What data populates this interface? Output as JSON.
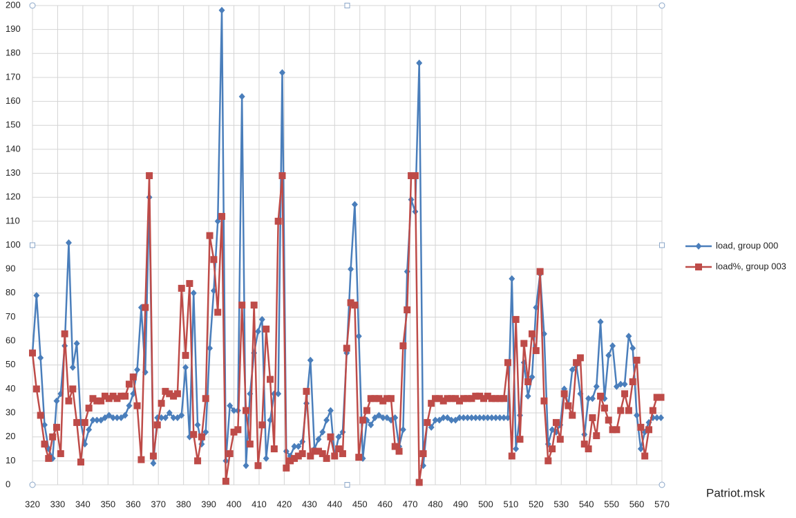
{
  "chart_data": {
    "type": "line",
    "x": [
      320,
      321.6,
      323.2,
      324.8,
      326.4,
      328,
      329.6,
      331.2,
      332.8,
      334.4,
      336,
      337.6,
      339.2,
      340.8,
      342.4,
      344,
      345.6,
      347.2,
      348.8,
      350.4,
      352,
      353.6,
      355.2,
      356.8,
      358.4,
      360,
      361.6,
      363.2,
      364.8,
      366.4,
      368,
      369.6,
      371.2,
      372.8,
      374.4,
      376,
      377.6,
      379.2,
      380.8,
      382.4,
      384,
      385.6,
      387.2,
      388.8,
      390.4,
      392,
      393.6,
      395.2,
      396.8,
      398.4,
      400,
      401.6,
      403.2,
      404.8,
      406.4,
      408,
      409.6,
      411.2,
      412.8,
      414.4,
      416,
      417.6,
      419.2,
      420.8,
      422.4,
      424,
      425.6,
      427.2,
      428.8,
      430.4,
      432,
      433.6,
      435.2,
      436.8,
      438.4,
      440,
      441.6,
      443.2,
      444.8,
      446.4,
      448,
      449.6,
      451.2,
      452.8,
      454.4,
      456,
      457.6,
      459.2,
      460.8,
      462.4,
      464,
      465.6,
      467.2,
      468.8,
      470.4,
      472,
      473.6,
      475.2,
      476.8,
      478.4,
      480,
      481.6,
      483.2,
      484.8,
      486.4,
      488,
      489.6,
      491.2,
      492.8,
      494.4,
      496,
      497.6,
      499.2,
      500.8,
      502.4,
      504,
      505.6,
      507.2,
      508.8,
      510.4,
      512,
      513.6,
      515.2,
      516.8,
      518.4,
      520,
      521.6,
      523.2,
      524.8,
      526.4,
      528,
      529.6,
      531.2,
      532.8,
      534.4,
      536,
      537.6,
      539.2,
      540.8,
      542.4,
      544,
      545.6,
      547.2,
      548.8,
      550.4,
      552,
      553.6,
      555.2,
      556.8,
      558.4,
      560,
      561.6,
      563.2,
      564.8,
      566.4,
      568,
      569.6
    ],
    "series": [
      {
        "name": "load, group 000",
        "color": "#4a7ebb",
        "marker": "diamond",
        "values": [
          55,
          79,
          53,
          25,
          15,
          11,
          35,
          38,
          58,
          101,
          49,
          59,
          26,
          17,
          23,
          27,
          27,
          27,
          28,
          29,
          28,
          28,
          28,
          29,
          33,
          38,
          48,
          74,
          47,
          120,
          9,
          28,
          28,
          28,
          30,
          28,
          28,
          29,
          49,
          20,
          80,
          25,
          17,
          22,
          57,
          81,
          110,
          198,
          10,
          33,
          31,
          31,
          162,
          8,
          38,
          55,
          64,
          69,
          11,
          27,
          38,
          38,
          172,
          14,
          12,
          16,
          16,
          18,
          34,
          52,
          15,
          19,
          22,
          27,
          31,
          12,
          20,
          22,
          55,
          90,
          117,
          62,
          11,
          27,
          25,
          28,
          29,
          28,
          28,
          27,
          28,
          16,
          23,
          89,
          119,
          114,
          176,
          8,
          26,
          24,
          27,
          27,
          28,
          28,
          27,
          27,
          28,
          28,
          28,
          28,
          28,
          28,
          28,
          28,
          28,
          28,
          28,
          28,
          28,
          86,
          15,
          29,
          51,
          37,
          45,
          74,
          88,
          63,
          17,
          23,
          22,
          25,
          40,
          33,
          48,
          50,
          38,
          21,
          36,
          36,
          41,
          68,
          36,
          54,
          58,
          41,
          42,
          42,
          62,
          57,
          29,
          15,
          22,
          26,
          28,
          28,
          28
        ]
      },
      {
        "name": "load%, group 003",
        "color": "#be4b48",
        "marker": "square",
        "values": [
          55,
          40,
          29,
          17,
          11,
          20,
          24,
          13,
          63,
          35,
          40,
          26,
          9.5,
          26,
          32,
          36,
          35,
          35,
          37,
          36,
          37,
          36,
          37,
          37,
          42,
          45,
          33,
          10.5,
          74,
          129,
          12,
          25,
          34,
          39,
          38,
          37,
          38,
          82,
          54,
          84,
          21,
          10,
          20,
          36,
          104,
          94,
          72,
          112,
          1.5,
          13,
          22,
          23,
          75,
          31,
          17,
          75,
          8,
          25,
          65,
          44,
          15,
          110,
          129,
          7,
          10,
          11,
          12,
          13,
          39,
          12,
          14,
          14,
          13,
          11,
          20,
          12,
          15,
          13,
          57,
          76,
          75,
          11.5,
          27,
          31,
          36,
          36,
          36,
          35,
          36,
          36,
          16,
          14,
          58,
          73,
          129,
          129,
          1,
          13,
          26,
          34,
          36,
          36,
          35,
          36,
          36,
          36,
          35,
          36,
          36,
          36,
          37,
          37,
          36,
          37,
          36,
          36,
          36,
          36,
          51,
          12,
          69,
          19,
          59,
          43,
          63,
          56,
          89,
          35,
          10,
          15,
          26,
          19,
          38,
          33,
          29,
          51,
          53,
          17,
          15,
          28,
          20.5,
          37,
          32,
          27,
          23,
          23,
          31,
          38,
          31,
          43,
          52,
          24,
          12,
          23,
          31,
          36.5,
          36.5
        ]
      }
    ],
    "xlim": [
      320,
      570
    ],
    "xticks": [
      320,
      330,
      340,
      350,
      360,
      370,
      380,
      390,
      400,
      410,
      420,
      430,
      440,
      450,
      460,
      470,
      480,
      490,
      500,
      510,
      520,
      530,
      540,
      550,
      560,
      570
    ],
    "ylim": [
      0,
      200
    ],
    "yticks": [
      0,
      10,
      20,
      30,
      40,
      50,
      60,
      70,
      80,
      90,
      100,
      110,
      120,
      130,
      140,
      150,
      160,
      170,
      180,
      190,
      200
    ],
    "grid": true,
    "legend": "right",
    "annotation": "Patriot.msk"
  }
}
